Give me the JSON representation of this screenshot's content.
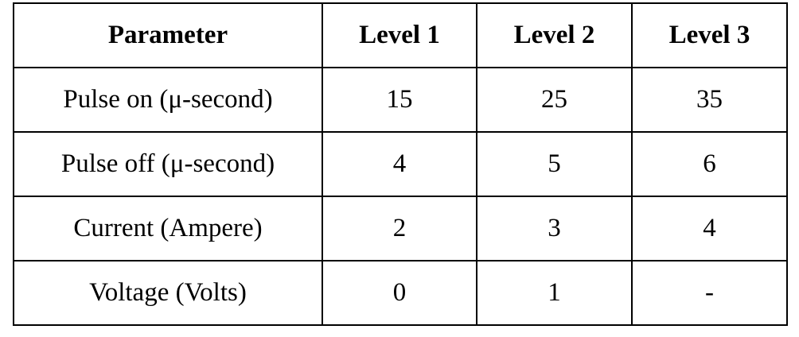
{
  "table": {
    "headers": [
      "Parameter",
      "Level 1",
      "Level 2",
      "Level 3"
    ],
    "rows": [
      [
        "Pulse on (μ-second)",
        "15",
        "25",
        "35"
      ],
      [
        "Pulse off (μ-second)",
        "4",
        "5",
        "6"
      ],
      [
        "Current (Ampere)",
        "2",
        "3",
        "4"
      ],
      [
        "Voltage (Volts)",
        "0",
        "1",
        "-"
      ]
    ]
  }
}
